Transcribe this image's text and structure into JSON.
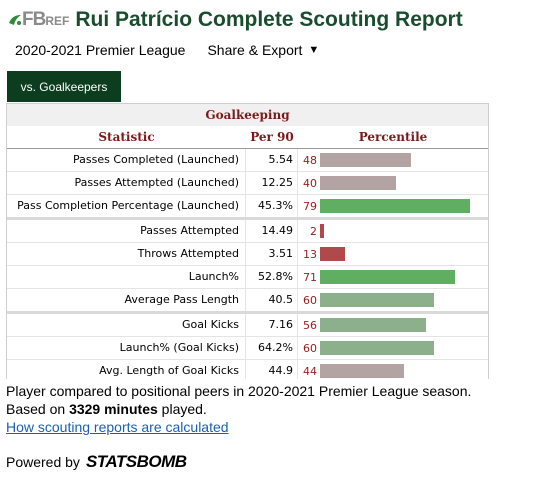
{
  "header": {
    "logo_main": "FB",
    "logo_sub": "REF",
    "title": "Rui Patrício Complete Scouting Report"
  },
  "subbar": {
    "season_label": "2020-2021 Premier League",
    "share_label": "Share & Export",
    "share_caret": "▼"
  },
  "tab": {
    "label": "vs. Goalkeepers"
  },
  "report": {
    "section_title": "Goalkeeping",
    "columns": {
      "statistic": "Statistic",
      "per90": "Per 90",
      "percentile": "Percentile"
    },
    "rows": [
      {
        "stat": "Passes Completed (Launched)",
        "per90": "5.54",
        "pct": 48,
        "color": "#b3a3a3",
        "group_end": false
      },
      {
        "stat": "Passes Attempted (Launched)",
        "per90": "12.25",
        "pct": 40,
        "color": "#b3a3a3",
        "group_end": false
      },
      {
        "stat": "Pass Completion Percentage (Launched)",
        "per90": "45.3%",
        "pct": 79,
        "color": "#5fae62",
        "group_end": true
      },
      {
        "stat": "Passes Attempted",
        "per90": "14.49",
        "pct": 2,
        "color": "#b04a4a",
        "group_end": false
      },
      {
        "stat": "Throws Attempted",
        "per90": "3.51",
        "pct": 13,
        "color": "#b04a4a",
        "group_end": false
      },
      {
        "stat": "Launch%",
        "per90": "52.8%",
        "pct": 71,
        "color": "#5fae62",
        "group_end": false
      },
      {
        "stat": "Average Pass Length",
        "per90": "40.5",
        "pct": 60,
        "color": "#8cb08c",
        "group_end": true
      },
      {
        "stat": "Goal Kicks",
        "per90": "7.16",
        "pct": 56,
        "color": "#8cb08c",
        "group_end": false
      },
      {
        "stat": "Launch% (Goal Kicks)",
        "per90": "64.2%",
        "pct": 60,
        "color": "#8cb08c",
        "group_end": false
      },
      {
        "stat": "Avg. Length of Goal Kicks",
        "per90": "44.9",
        "pct": 44,
        "color": "#b3a3a3",
        "group_end": false
      }
    ]
  },
  "footer": {
    "line1": "Player compared to positional peers in 2020-2021 Premier League season.",
    "line2_prefix": "Based on ",
    "line2_bold": "3329 minutes",
    "line2_suffix": " played.",
    "link": "How scouting reports are calculated"
  },
  "powered": {
    "prefix": "Powered by",
    "brand": "STATSBOMB"
  }
}
